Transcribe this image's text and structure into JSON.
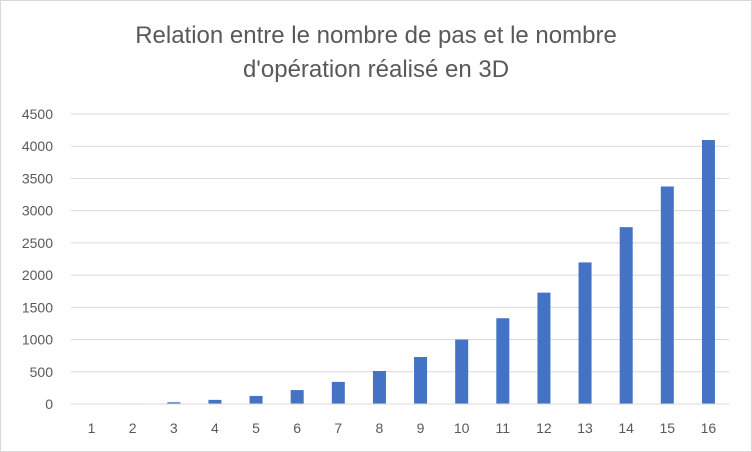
{
  "chart_data": {
    "type": "bar",
    "title_lines": [
      "Relation entre le nombre de pas et le nombre",
      "d'opération réalisé en 3D"
    ],
    "xlabel": "",
    "ylabel": "",
    "categories": [
      "1",
      "2",
      "3",
      "4",
      "5",
      "6",
      "7",
      "8",
      "9",
      "10",
      "11",
      "12",
      "13",
      "14",
      "15",
      "16"
    ],
    "values": [
      1,
      8,
      27,
      64,
      125,
      216,
      343,
      512,
      729,
      1000,
      1331,
      1728,
      2197,
      2744,
      3375,
      4096
    ],
    "ylim": [
      0,
      4500
    ],
    "yticks": [
      "0",
      "500",
      "1000",
      "1500",
      "2000",
      "2500",
      "3000",
      "3500",
      "4000",
      "4500"
    ],
    "grid": true,
    "legend": "none",
    "bar_color": "#4472c4",
    "grid_color": "#d9d9d9"
  }
}
